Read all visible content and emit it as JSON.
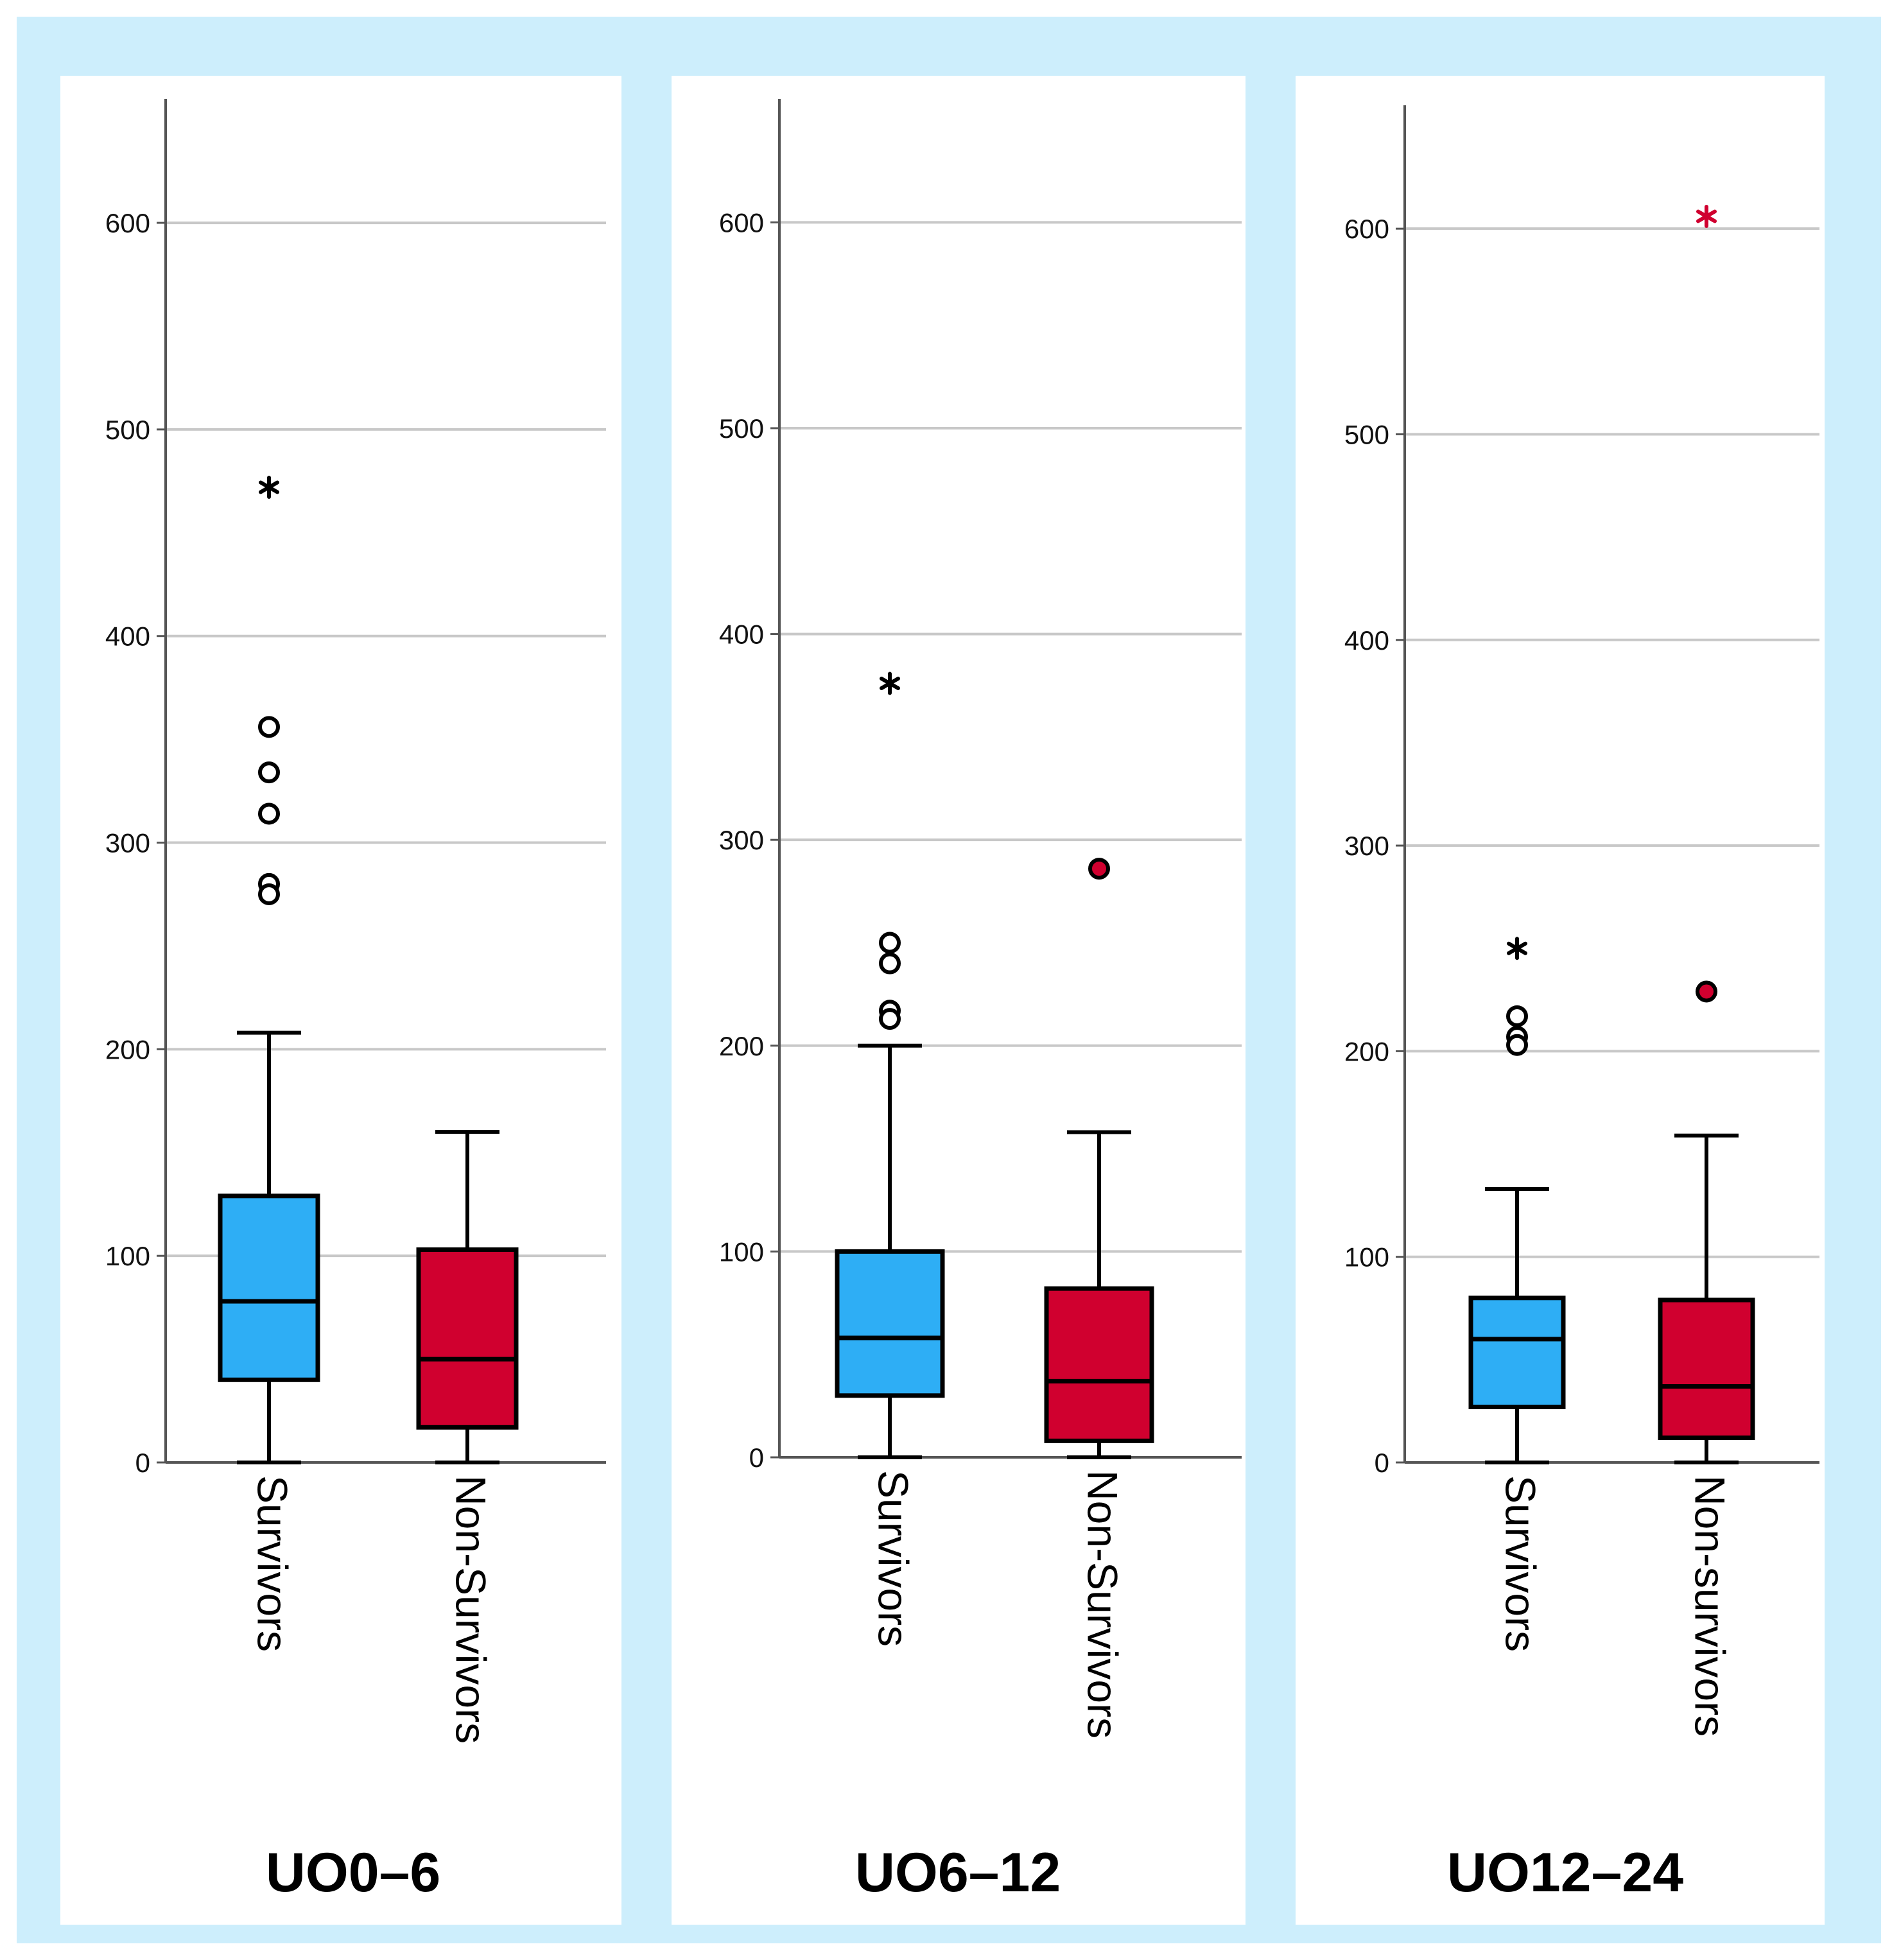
{
  "chart_data": [
    {
      "type": "boxplot",
      "title": "UO0–6",
      "ylim": [
        0,
        660
      ],
      "yticks": [
        0,
        100,
        200,
        300,
        400,
        500,
        600
      ],
      "grid": true,
      "categories": [
        "Survivors",
        "Non-Survivors"
      ],
      "boxes": [
        {
          "category": "Survivors",
          "color": "#2eaef5",
          "whisker_low": 0,
          "q1": 40,
          "median": 78,
          "q3": 129,
          "whisker_high": 208,
          "outliers": [
            356,
            334,
            314,
            280,
            275
          ],
          "extremes": [
            472
          ],
          "outlier_color": "#000000"
        },
        {
          "category": "Non-Survivors",
          "color": "#d0002f",
          "whisker_low": 0,
          "q1": 17,
          "median": 50,
          "q3": 103,
          "whisker_high": 160,
          "outliers": [],
          "extremes": [],
          "outlier_color": "#000000"
        }
      ]
    },
    {
      "type": "boxplot",
      "title": "UO6–12",
      "ylim": [
        0,
        660
      ],
      "yticks": [
        0,
        100,
        200,
        300,
        400,
        500,
        600
      ],
      "grid": true,
      "categories": [
        "Survivors",
        "Non-Survivors"
      ],
      "boxes": [
        {
          "category": "Survivors",
          "color": "#2eaef5",
          "whisker_low": 0,
          "q1": 30,
          "median": 58,
          "q3": 100,
          "whisker_high": 200,
          "outliers": [
            250,
            240,
            217,
            213
          ],
          "extremes": [
            376
          ],
          "outlier_color": "#000000"
        },
        {
          "category": "Non-Survivors",
          "color": "#d0002f",
          "whisker_low": 0,
          "q1": 8,
          "median": 37,
          "q3": 82,
          "whisker_high": 158,
          "outliers": [
            286
          ],
          "extremes": [],
          "outlier_color": "#d0002f"
        }
      ]
    },
    {
      "type": "boxplot",
      "title": "UO12–24",
      "ylim": [
        0,
        660
      ],
      "yticks": [
        0,
        100,
        200,
        300,
        400,
        500,
        600
      ],
      "grid": true,
      "categories": [
        "Survivors",
        "Non-survivors"
      ],
      "boxes": [
        {
          "category": "Survivors",
          "color": "#2eaef5",
          "whisker_low": 0,
          "q1": 27,
          "median": 60,
          "q3": 80,
          "whisker_high": 133,
          "outliers": [
            217,
            207,
            203
          ],
          "extremes": [
            250
          ],
          "outlier_color": "#000000"
        },
        {
          "category": "Non-survivors",
          "color": "#d0002f",
          "whisker_low": 0,
          "q1": 12,
          "median": 37,
          "q3": 79,
          "whisker_high": 159,
          "outliers": [
            229
          ],
          "extremes": [
            606
          ],
          "outlier_color": "#d0002f"
        }
      ]
    }
  ]
}
